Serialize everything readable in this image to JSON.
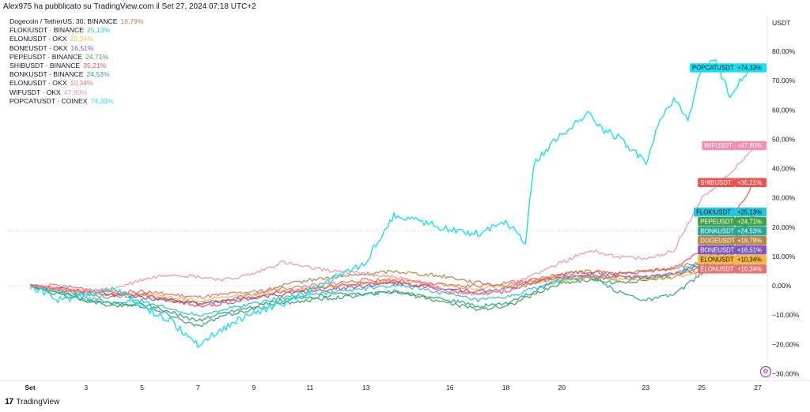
{
  "header": {
    "published_text": "Alex975 ha pubblicato su TradingView.com il Set 27, 2024 07:18 UTC+2"
  },
  "legend": [
    {
      "name": "Dogecoin / TetherUS, 30, BINANCE",
      "pct": "18,79%",
      "color": "#b8864a"
    },
    {
      "name": "FLOKIUSDT · BINANCE",
      "pct": "25,13%",
      "color": "#26c6da"
    },
    {
      "name": "ELONUSDT · OKX",
      "pct": "10,34%",
      "color": "#f6b73c"
    },
    {
      "name": "BONEUSDT · OKX",
      "pct": "16,51%",
      "color": "#7e57c2"
    },
    {
      "name": "PEPEUSDT · BINANCE",
      "pct": "24,71%",
      "color": "#43a047"
    },
    {
      "name": "SHIBUSDT · BINANCE",
      "pct": "35,21%",
      "color": "#ef5350"
    },
    {
      "name": "BONKUSDT · BINANCE",
      "pct": "24,53%",
      "color": "#26a69a"
    },
    {
      "name": "ELONUSDT · OKX",
      "pct": "10,34%",
      "color": "#e57373"
    },
    {
      "name": "WIFUSDT · OKX",
      "pct": "47,80%",
      "color": "#f48fb1"
    },
    {
      "name": "POPCATUSDT · COINEX",
      "pct": "74,33%",
      "color": "#18e0f0"
    }
  ],
  "axis": {
    "currency": "USDT",
    "footer_brand": "TradingView",
    "logo_text": "17"
  },
  "chart_data": {
    "type": "line",
    "y_unit": "%",
    "ylim": [
      -30,
      80
    ],
    "y_ticks": [
      "80,00%",
      "70,00%",
      "60,00%",
      "50,00%",
      "40,00%",
      "30,00%",
      "20,00%",
      "10,00%",
      "0,00%",
      "−10,00%",
      "−20,00%",
      "−30,00%"
    ],
    "x_ticks": [
      "Set",
      "3",
      "5",
      "7",
      "9",
      "11",
      "13",
      "16",
      "18",
      "20",
      "23",
      "25",
      "27"
    ],
    "x_tick_days": [
      1,
      3,
      5,
      7,
      9,
      11,
      13,
      16,
      18,
      20,
      23,
      25,
      27
    ],
    "xlim": [
      1,
      27.2
    ],
    "series": [
      {
        "label": "DOGEUSDT",
        "badge": "+18,79%",
        "color": "#b8864a",
        "end": 18.79,
        "points": [
          [
            1,
            0
          ],
          [
            2,
            -1
          ],
          [
            3,
            -3
          ],
          [
            4,
            -4
          ],
          [
            5,
            -3
          ],
          [
            6,
            -5
          ],
          [
            7,
            -6
          ],
          [
            8,
            -5
          ],
          [
            9,
            -3
          ],
          [
            10,
            0
          ],
          [
            11,
            2
          ],
          [
            12,
            3
          ],
          [
            13,
            4
          ],
          [
            14,
            5
          ],
          [
            15,
            4
          ],
          [
            16,
            3
          ],
          [
            17,
            1
          ],
          [
            18,
            0
          ],
          [
            19,
            2
          ],
          [
            20,
            4
          ],
          [
            21,
            5
          ],
          [
            22,
            4
          ],
          [
            23,
            5
          ],
          [
            24,
            6
          ],
          [
            25,
            8
          ],
          [
            26,
            12
          ],
          [
            26.9,
            18.79
          ]
        ]
      },
      {
        "label": "FLOKIUSDT",
        "badge": "+25,13%",
        "color": "#26c6da",
        "end": 25.13,
        "points": [
          [
            1,
            0
          ],
          [
            2,
            -2
          ],
          [
            3,
            -4
          ],
          [
            4,
            -6
          ],
          [
            5,
            -5
          ],
          [
            6,
            -8
          ],
          [
            7,
            -10
          ],
          [
            8,
            -8
          ],
          [
            9,
            -6
          ],
          [
            10,
            -4
          ],
          [
            11,
            -3
          ],
          [
            12,
            -2
          ],
          [
            13,
            -1
          ],
          [
            14,
            0
          ],
          [
            15,
            -1
          ],
          [
            16,
            -3
          ],
          [
            17,
            -5
          ],
          [
            18,
            -4
          ],
          [
            19,
            -1
          ],
          [
            20,
            2
          ],
          [
            21,
            3
          ],
          [
            22,
            2
          ],
          [
            23,
            3
          ],
          [
            24,
            4
          ],
          [
            25,
            8
          ],
          [
            26,
            15
          ],
          [
            26.9,
            25.13
          ]
        ]
      },
      {
        "label": "PEPEUSDT",
        "badge": "+24,71%",
        "color": "#43a047",
        "end": 24.71,
        "points": [
          [
            1,
            0
          ],
          [
            2,
            -3
          ],
          [
            3,
            -5
          ],
          [
            4,
            -7
          ],
          [
            5,
            -6
          ],
          [
            6,
            -9
          ],
          [
            7,
            -12
          ],
          [
            8,
            -9
          ],
          [
            9,
            -7
          ],
          [
            10,
            -5
          ],
          [
            11,
            -4
          ],
          [
            12,
            -3
          ],
          [
            13,
            -3
          ],
          [
            14,
            -2
          ],
          [
            15,
            -4
          ],
          [
            16,
            -6
          ],
          [
            17,
            -8
          ],
          [
            18,
            -7
          ],
          [
            19,
            -3
          ],
          [
            20,
            1
          ],
          [
            21,
            2
          ],
          [
            22,
            1
          ],
          [
            23,
            2
          ],
          [
            24,
            3
          ],
          [
            25,
            7
          ],
          [
            26,
            14
          ],
          [
            26.9,
            24.71
          ]
        ]
      },
      {
        "label": "BONKUSDT",
        "badge": "+24,53%",
        "color": "#26a69a",
        "end": 24.53,
        "points": [
          [
            1,
            0
          ],
          [
            2,
            -2
          ],
          [
            3,
            -5
          ],
          [
            4,
            -6
          ],
          [
            5,
            -7
          ],
          [
            6,
            -10
          ],
          [
            7,
            -14
          ],
          [
            8,
            -10
          ],
          [
            9,
            -8
          ],
          [
            10,
            -6
          ],
          [
            11,
            -5
          ],
          [
            12,
            -4
          ],
          [
            13,
            -3
          ],
          [
            14,
            -2
          ],
          [
            15,
            -3
          ],
          [
            16,
            -5
          ],
          [
            17,
            -7
          ],
          [
            18,
            -6
          ],
          [
            19,
            -2
          ],
          [
            20,
            2
          ],
          [
            21,
            3
          ],
          [
            22,
            -2
          ],
          [
            23,
            -5
          ],
          [
            24,
            -3
          ],
          [
            25,
            4
          ],
          [
            26,
            12
          ],
          [
            26.9,
            24.53
          ]
        ]
      },
      {
        "label": "BONEUSDT",
        "badge": "+16,51%",
        "color": "#7e57c2",
        "end": 16.51,
        "points": [
          [
            1,
            0
          ],
          [
            2,
            -1
          ],
          [
            3,
            -2
          ],
          [
            4,
            -3
          ],
          [
            5,
            -4
          ],
          [
            6,
            -5
          ],
          [
            7,
            -6
          ],
          [
            8,
            -5
          ],
          [
            9,
            -4
          ],
          [
            10,
            -3
          ],
          [
            11,
            -2
          ],
          [
            12,
            -1
          ],
          [
            13,
            0
          ],
          [
            14,
            1
          ],
          [
            15,
            0
          ],
          [
            16,
            -1
          ],
          [
            17,
            -2
          ],
          [
            18,
            -1
          ],
          [
            19,
            1
          ],
          [
            20,
            3
          ],
          [
            21,
            4
          ],
          [
            22,
            3
          ],
          [
            23,
            3
          ],
          [
            24,
            4
          ],
          [
            25,
            7
          ],
          [
            26,
            10
          ],
          [
            26.9,
            16.51
          ]
        ]
      },
      {
        "label": "ELONUSDT",
        "badge": "+10,34%",
        "color": "#f6b73c",
        "end": 10.34,
        "points": [
          [
            1,
            0
          ],
          [
            2,
            -1
          ],
          [
            3,
            -2
          ],
          [
            4,
            -2
          ],
          [
            5,
            -3
          ],
          [
            6,
            -4
          ],
          [
            7,
            -5
          ],
          [
            8,
            -4
          ],
          [
            9,
            -3
          ],
          [
            10,
            -2
          ],
          [
            11,
            -1
          ],
          [
            12,
            0
          ],
          [
            13,
            1
          ],
          [
            14,
            2
          ],
          [
            15,
            1
          ],
          [
            16,
            0
          ],
          [
            17,
            -1
          ],
          [
            18,
            0
          ],
          [
            19,
            1
          ],
          [
            20,
            2
          ],
          [
            21,
            3
          ],
          [
            22,
            2
          ],
          [
            23,
            2
          ],
          [
            24,
            3
          ],
          [
            25,
            4
          ],
          [
            26,
            6
          ],
          [
            26.9,
            10.34
          ]
        ]
      },
      {
        "label": "ELONUSDT",
        "badge": "+10,34%",
        "color": "#e57373",
        "end": 10.34,
        "points": [
          [
            1,
            0
          ],
          [
            2,
            0
          ],
          [
            3,
            -1
          ],
          [
            4,
            -2
          ],
          [
            5,
            -2
          ],
          [
            6,
            -3
          ],
          [
            7,
            -4
          ],
          [
            8,
            -3
          ],
          [
            9,
            -2
          ],
          [
            10,
            -1
          ],
          [
            11,
            0
          ],
          [
            12,
            1
          ],
          [
            13,
            2
          ],
          [
            14,
            2
          ],
          [
            15,
            1
          ],
          [
            16,
            0
          ],
          [
            17,
            0
          ],
          [
            18,
            1
          ],
          [
            19,
            2
          ],
          [
            20,
            3
          ],
          [
            21,
            3
          ],
          [
            22,
            3
          ],
          [
            23,
            3
          ],
          [
            24,
            4
          ],
          [
            25,
            5
          ],
          [
            26,
            7
          ],
          [
            26.9,
            10.34
          ]
        ]
      },
      {
        "label": "SHIBUSDT",
        "badge": "+35,21%",
        "color": "#ef5350",
        "end": 35.21,
        "points": [
          [
            1,
            0
          ],
          [
            2,
            -1
          ],
          [
            3,
            -2
          ],
          [
            4,
            -3
          ],
          [
            5,
            -3
          ],
          [
            6,
            -5
          ],
          [
            7,
            -7
          ],
          [
            8,
            -6
          ],
          [
            9,
            -4
          ],
          [
            10,
            -2
          ],
          [
            11,
            -1
          ],
          [
            12,
            0
          ],
          [
            13,
            1
          ],
          [
            14,
            1
          ],
          [
            15,
            0
          ],
          [
            16,
            -2
          ],
          [
            17,
            -3
          ],
          [
            18,
            -2
          ],
          [
            19,
            1
          ],
          [
            20,
            4
          ],
          [
            21,
            5
          ],
          [
            22,
            4
          ],
          [
            23,
            5
          ],
          [
            24,
            6
          ],
          [
            25,
            12
          ],
          [
            26,
            22
          ],
          [
            26.9,
            35.21
          ]
        ]
      },
      {
        "label": "WIFUSDT",
        "badge": "+47,80%",
        "color": "#f48fb1",
        "end": 47.8,
        "points": [
          [
            1,
            0
          ],
          [
            2,
            -1
          ],
          [
            3,
            -2
          ],
          [
            4,
            -1
          ],
          [
            5,
            2
          ],
          [
            6,
            4
          ],
          [
            7,
            3
          ],
          [
            8,
            2
          ],
          [
            9,
            4
          ],
          [
            10,
            8
          ],
          [
            11,
            6
          ],
          [
            12,
            5
          ],
          [
            13,
            4
          ],
          [
            14,
            3
          ],
          [
            15,
            1
          ],
          [
            16,
            -2
          ],
          [
            17,
            -3
          ],
          [
            18,
            -1
          ],
          [
            19,
            4
          ],
          [
            20,
            8
          ],
          [
            21,
            12
          ],
          [
            22,
            10
          ],
          [
            23,
            9
          ],
          [
            24,
            12
          ],
          [
            25,
            30
          ],
          [
            26,
            38
          ],
          [
            26.9,
            47.8
          ]
        ]
      },
      {
        "label": "POPCATUSDT",
        "badge": "+74,33%",
        "color": "#18e0f0",
        "end": 74.33,
        "points": [
          [
            1,
            0
          ],
          [
            2,
            -5
          ],
          [
            3,
            -3
          ],
          [
            4,
            -1
          ],
          [
            5,
            -7
          ],
          [
            6,
            -12
          ],
          [
            7,
            -20
          ],
          [
            8,
            -14
          ],
          [
            9,
            -9
          ],
          [
            10,
            -6
          ],
          [
            11,
            -2
          ],
          [
            12,
            3
          ],
          [
            13,
            8
          ],
          [
            14,
            24
          ],
          [
            15,
            22
          ],
          [
            16,
            19
          ],
          [
            17,
            18
          ],
          [
            18,
            22
          ],
          [
            18.7,
            15
          ],
          [
            19,
            42
          ],
          [
            19.5,
            47
          ],
          [
            20,
            52
          ],
          [
            21,
            59
          ],
          [
            21.5,
            53
          ],
          [
            22,
            51
          ],
          [
            23,
            42
          ],
          [
            23.5,
            56
          ],
          [
            24,
            64
          ],
          [
            24.5,
            56
          ],
          [
            25,
            75
          ],
          [
            25.5,
            76
          ],
          [
            26,
            65
          ],
          [
            26.5,
            72
          ],
          [
            26.9,
            74.33
          ]
        ]
      }
    ],
    "grid": false,
    "legend_position": "top-left",
    "zero_line": true
  }
}
